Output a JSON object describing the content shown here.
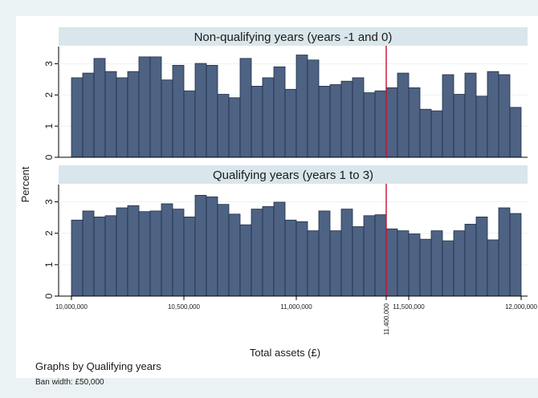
{
  "chart_data": {
    "type": "bar",
    "ylabel": "Percent",
    "xlabel": "Total assets (£)",
    "xlim": [
      10000000,
      12000000
    ],
    "ylim": [
      0,
      3.5
    ],
    "y_ticks": [
      "0",
      "1",
      "2",
      "3"
    ],
    "x_ticks": [
      "10,000,000",
      "10,500,000",
      "11,000,000",
      "11,500,000",
      "12,000,000"
    ],
    "bin_width": 50000,
    "threshold_label": "11,400,000",
    "threshold_value": 11400000,
    "bar_color": "#4e6283",
    "bar_edge_color": "#1f2f48",
    "threshold_color": "#c8102e",
    "panels": [
      {
        "title": "Non-qualifying years (years -1 and 0)",
        "values": [
          2.55,
          2.7,
          3.17,
          2.75,
          2.55,
          2.75,
          3.22,
          3.22,
          2.48,
          2.95,
          2.13,
          3.01,
          2.95,
          2.02,
          1.91,
          3.17,
          2.28,
          2.55,
          2.9,
          2.18,
          3.28,
          3.12,
          2.28,
          2.33,
          2.44,
          2.55,
          2.07,
          2.13,
          2.23,
          2.7,
          2.23,
          1.54,
          1.49,
          2.65,
          2.02,
          2.7,
          1.96,
          2.75,
          2.65,
          1.6
        ]
      },
      {
        "title": "Qualifying years (years 1 to 3)",
        "values": [
          2.42,
          2.71,
          2.52,
          2.56,
          2.81,
          2.88,
          2.69,
          2.71,
          2.94,
          2.77,
          2.52,
          3.21,
          3.16,
          2.92,
          2.61,
          2.27,
          2.77,
          2.85,
          2.99,
          2.42,
          2.37,
          2.08,
          2.71,
          2.08,
          2.77,
          2.21,
          2.56,
          2.59,
          2.14,
          2.08,
          1.98,
          1.81,
          2.08,
          1.76,
          2.08,
          2.29,
          2.52,
          1.79,
          2.81,
          2.63
        ]
      }
    ]
  },
  "footer": {
    "note": "Graphs by Qualifying years",
    "bin_note": "Ban width: £50,000"
  }
}
